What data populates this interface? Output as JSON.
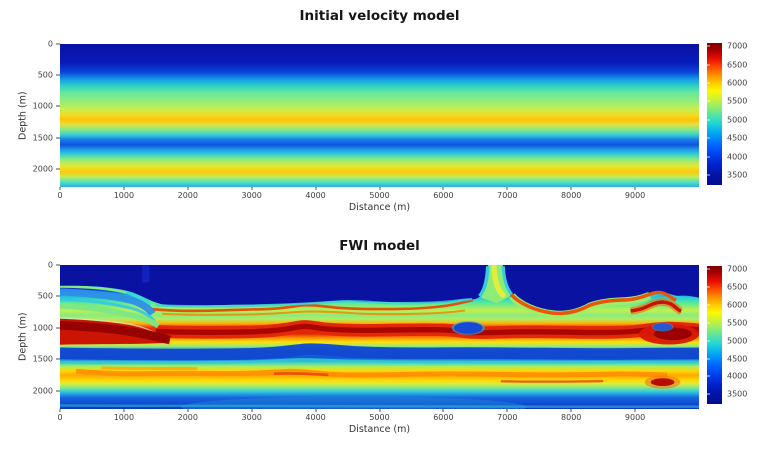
{
  "figure": {
    "background": "#ffffff"
  },
  "chart_data": [
    {
      "type": "heatmap",
      "title": "Initial velocity model",
      "xlabel": "Distance (m)",
      "ylabel": "Depth (m)",
      "x_range_m": [
        0,
        10000
      ],
      "depth_range_m": [
        0,
        2290
      ],
      "xticks": [
        0,
        1000,
        2000,
        3000,
        4000,
        5000,
        6000,
        7000,
        8000,
        9000
      ],
      "yticks": [
        0,
        500,
        1000,
        1500,
        2000
      ],
      "colormap": "jet",
      "color_range": [
        3230,
        7090
      ],
      "colorbar_ticks": [
        7000,
        6500,
        6000,
        5500,
        5000,
        4500,
        4000,
        3500
      ],
      "structure": "laterally homogeneous 1D layered velocity model (velocity varies with depth only)",
      "profile": {
        "depth_m": [
          0,
          250,
          450,
          600,
          750,
          900,
          1050,
          1200,
          1350,
          1500,
          1650,
          1800,
          1950,
          2100,
          2290
        ],
        "velocity_mps": [
          3300,
          3400,
          3900,
          4500,
          5000,
          5300,
          5600,
          5000,
          4200,
          4600,
          5300,
          5600,
          4900,
          4300,
          4400
        ]
      }
    },
    {
      "type": "heatmap",
      "title": "FWI model",
      "xlabel": "Distance (m)",
      "ylabel": "Depth (m)",
      "x_range_m": [
        0,
        10000
      ],
      "depth_range_m": [
        0,
        2290
      ],
      "xticks": [
        0,
        1000,
        2000,
        3000,
        4000,
        5000,
        6000,
        7000,
        8000,
        9000
      ],
      "yticks": [
        0,
        500,
        1000,
        1500,
        2000
      ],
      "colormap": "jet",
      "color_range": [
        3230,
        7090
      ],
      "colorbar_ticks": [
        7000,
        6500,
        6000,
        5500,
        5000,
        4500,
        4000,
        3500
      ],
      "structure": "2D full-waveform-inversion velocity model with laterally varying layers",
      "features": [
        "dark-blue low-velocity overburden (~3300 m/s) from surface to ~330 m at left, deepening to ~600-650 m across most of the model",
        "dipping cyan-green sediment wedge in the upper-left (x < 1500 m)",
        "thick dark-red high-velocity layer (~6500-7000 m/s) at ~950-1250 m depth, thickest at x < 1500 m and near x ~ 9500 m",
        "thin red high-velocity stringers near ~700-800 m depth from x ~ 1500 m to the right edge",
        "blue low-velocity band at ~1300-1550 m depth",
        "yellow-orange layered zone (~5500-6000 m/s) at ~1600-1900 m depth with internal orange streaks",
        "vertical green pipe-like anomaly reaching the surface at x ~ 6700-6950 m",
        "buried-canyon navy fill right of the pipe, floored by a red-orange arc bottoming near 800 m at x ~ 7900 m",
        "blue lens at ~(6400 m, 1000 m) interrupting the red layer",
        "red anticline arc near (9300-9600 m, ~600 m), blue lens at ~(9430 m, 980 m) and deep red pocket near (9430 m, 1860 m)",
        "faint vertical blue streak at x ~ 1300 m in the shallow section"
      ]
    }
  ]
}
